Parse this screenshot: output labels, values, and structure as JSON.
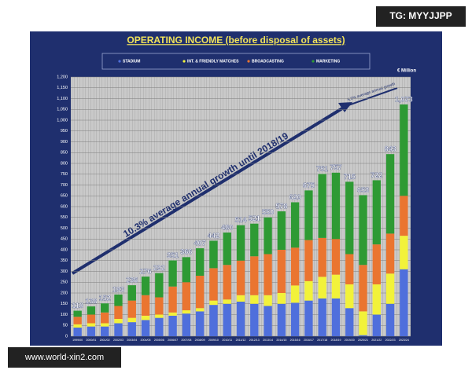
{
  "watermark_top": "TG: MYYJJPP",
  "watermark_bottom": "www.world-xin2.com",
  "chart_data": {
    "type": "bar",
    "stacked": true,
    "title": "OPERATING INCOME (before disposal of assets)",
    "y_unit": "€ Million",
    "annotations": [
      "10.3% average annual growth until 2018/19",
      "5.5% average annual growth"
    ],
    "categories": [
      "1999/00",
      "2000/01",
      "2001/02",
      "2002/03",
      "2003/04",
      "2004/05",
      "2005/06",
      "2006/07",
      "2007/08",
      "2008/09",
      "2009/10",
      "2010/11",
      "2011/12",
      "2012/13",
      "2013/14",
      "2014/15",
      "2015/16",
      "2016/17",
      "2017/18",
      "2018/19",
      "2019/20",
      "2020/21",
      "2021/22",
      "2022/23",
      "2023/24"
    ],
    "series": [
      {
        "name": "STADIUM",
        "color": "#4f6fdc",
        "values": [
          40,
          45,
          45,
          60,
          65,
          75,
          85,
          95,
          105,
          115,
          145,
          150,
          160,
          150,
          140,
          150,
          155,
          165,
          175,
          175,
          130,
          5,
          100,
          150,
          310
        ]
      },
      {
        "name": "INT. & FRIENDLY MATCHES",
        "color": "#f2f23a",
        "values": [
          15,
          15,
          15,
          20,
          20,
          20,
          15,
          15,
          15,
          15,
          20,
          20,
          30,
          40,
          50,
          50,
          80,
          90,
          100,
          110,
          110,
          110,
          140,
          140,
          155
        ]
      },
      {
        "name": "BROADCASTING",
        "color": "#ea7530",
        "values": [
          35,
          40,
          50,
          60,
          80,
          95,
          80,
          120,
          130,
          150,
          150,
          160,
          160,
          180,
          190,
          200,
          175,
          190,
          180,
          165,
          140,
          215,
          185,
          185,
          185
        ]
      },
      {
        "name": "MARKETING",
        "color": "#2e9a34",
        "values": [
          28,
          38,
          42,
          53,
          71,
          86,
          112,
          121,
          116,
          127,
          127,
          150,
          164,
          151,
          170,
          178,
          210,
          230,
          296,
          307,
          335,
          323,
          297,
          368,
          423
        ]
      }
    ],
    "totals": [
      118,
      138,
      152,
      193,
      236,
      276,
      292,
      351,
      366,
      407,
      442,
      480,
      514,
      521,
      550,
      578,
      620,
      675,
      751,
      757,
      715,
      653,
      722,
      843,
      1073
    ],
    "total_labels": [
      "118",
      "138",
      "152",
      "193",
      "236",
      "276",
      "292",
      "351",
      "366",
      "407",
      "442",
      "480",
      "514",
      "521",
      "550",
      "578",
      "620",
      "675",
      "751",
      "757",
      "715",
      "653",
      "722",
      "843",
      "1,073"
    ],
    "ylim": [
      0,
      1200
    ],
    "yticks": [
      0,
      50,
      100,
      150,
      200,
      250,
      300,
      350,
      400,
      450,
      500,
      550,
      600,
      650,
      700,
      750,
      800,
      850,
      900,
      950,
      {
        "value": 1000,
        "label": "1,000"
      },
      {
        "value": 1050,
        "label": "1,050"
      },
      {
        "value": 1100,
        "label": "1,100"
      },
      {
        "value": 1150,
        "label": "1,150"
      },
      {
        "value": 1200,
        "label": "1,200"
      }
    ],
    "grid": true
  }
}
